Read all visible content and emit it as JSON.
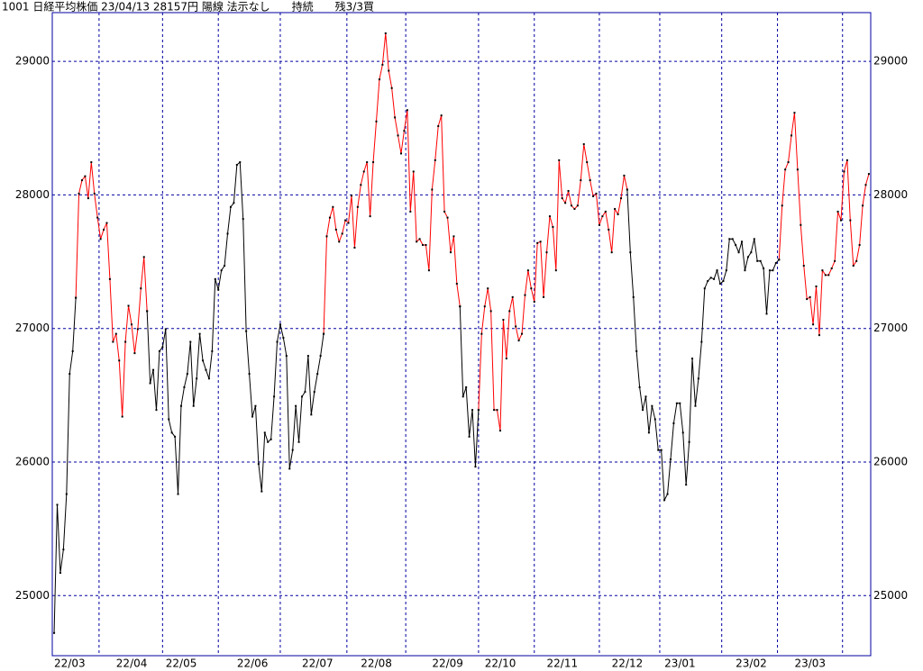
{
  "chart_data": {
    "type": "line",
    "title": "1001 日経平均株価 23/04/13 28157円 陽線 法示なし　　持続　　残3/3買",
    "categories": [
      "22/03",
      null,
      null,
      null,
      null,
      null,
      null,
      null,
      null,
      null,
      null,
      null,
      null,
      null,
      null,
      null,
      null,
      null,
      null,
      null,
      "22/04",
      null,
      null,
      null,
      null,
      null,
      null,
      null,
      null,
      null,
      null,
      null,
      null,
      null,
      null,
      null,
      "22/05",
      null,
      null,
      null,
      null,
      null,
      null,
      null,
      null,
      null,
      null,
      null,
      null,
      null,
      null,
      null,
      null,
      null,
      null,
      null,
      null,
      null,
      null,
      "22/06",
      null,
      null,
      null,
      null,
      null,
      null,
      null,
      null,
      null,
      null,
      null,
      null,
      null,
      null,
      null,
      null,
      null,
      null,
      null,
      null,
      "22/07",
      null,
      null,
      null,
      null,
      null,
      null,
      null,
      null,
      null,
      null,
      null,
      null,
      null,
      null,
      null,
      null,
      null,
      null,
      "22/08",
      null,
      null,
      null,
      null,
      null,
      null,
      null,
      null,
      null,
      null,
      null,
      null,
      null,
      null,
      null,
      null,
      null,
      null,
      null,
      null,
      null,
      null,
      "22/09",
      null,
      null,
      null,
      null,
      null,
      null,
      null,
      null,
      null,
      null,
      null,
      null,
      null,
      null,
      null,
      null,
      "22/10",
      null,
      null,
      null,
      null,
      null,
      null,
      null,
      null,
      null,
      null,
      null,
      null,
      null,
      null,
      null,
      null,
      null,
      null,
      null,
      "22/11",
      null,
      null,
      null,
      null,
      null,
      null,
      null,
      null,
      null,
      null,
      null,
      null,
      null,
      null,
      null,
      null,
      null,
      null,
      null,
      null,
      "22/12",
      null,
      null,
      null,
      null,
      null,
      null,
      null,
      null,
      null,
      null,
      null,
      null,
      null,
      null,
      null,
      null,
      "23/01",
      null,
      null,
      null,
      null,
      null,
      null,
      null,
      null,
      null,
      null,
      null,
      null,
      null,
      null,
      null,
      null,
      null,
      null,
      null,
      null,
      null,
      null,
      "23/02",
      null,
      null,
      null,
      null,
      null,
      null,
      null,
      null,
      null,
      null,
      null,
      null,
      null,
      null,
      null,
      null,
      null,
      null,
      "23/03",
      null,
      null,
      null,
      null,
      null,
      null,
      null,
      null,
      null,
      null,
      null,
      null,
      null,
      null,
      null,
      null,
      null,
      null,
      null,
      null,
      null,
      null,
      null,
      null
    ],
    "series": [
      {
        "color": "#000000",
        "values": [
          24720,
          25680,
          25170,
          25345,
          25760,
          26660,
          26830,
          27230,
          null,
          null,
          null,
          null,
          null,
          null,
          null,
          null,
          null,
          null,
          null,
          null,
          null,
          null,
          null,
          null,
          null,
          null,
          null,
          null,
          null,
          null,
          27130,
          26590,
          26690,
          26390,
          26830,
          26860,
          26995,
          26320,
          26220,
          26190,
          25760,
          26420,
          26560,
          26660,
          26900,
          26420,
          26625,
          26960,
          26760,
          26690,
          26625,
          26830,
          27370,
          27290,
          27435,
          27470,
          27710,
          27910,
          27940,
          28225,
          28245,
          27820,
          26980,
          26660,
          26340,
          26420,
          25985,
          25780,
          26220,
          26150,
          26170,
          26490,
          26900,
          27030,
          26930,
          26795,
          25950,
          26090,
          26420,
          26150,
          26490,
          26525,
          26795,
          26355,
          26525,
          26660,
          26795,
          26960,
          null,
          null,
          null,
          null,
          null,
          null,
          null,
          null,
          null,
          null,
          null,
          null,
          null,
          null,
          null,
          null,
          null,
          null,
          null,
          null,
          null,
          null,
          null,
          null,
          null,
          null,
          null,
          null,
          null,
          null,
          null,
          null,
          null,
          null,
          null,
          null,
          null,
          null,
          null,
          null,
          null,
          null,
          null,
          27165,
          26490,
          26560,
          26190,
          26390,
          25965,
          26390,
          null,
          null,
          null,
          null,
          null,
          null,
          null,
          null,
          null,
          null,
          null,
          null,
          null,
          null,
          null,
          null,
          null,
          null,
          null,
          null,
          null,
          null,
          null,
          null,
          null,
          null,
          null,
          null,
          null,
          null,
          null,
          null,
          null,
          null,
          null,
          null,
          null,
          null,
          null,
          null,
          null,
          null,
          null,
          null,
          null,
          null,
          null,
          28040,
          27570,
          27235,
          26830,
          26560,
          26390,
          26490,
          26220,
          26420,
          26320,
          26090,
          26090,
          25715,
          25760,
          26020,
          26290,
          26440,
          26440,
          26220,
          25830,
          26150,
          26775,
          26420,
          26625,
          26900,
          27300,
          27355,
          27380,
          27370,
          27435,
          27335,
          27355,
          27435,
          27670,
          27670,
          27625,
          27570,
          27650,
          27435,
          27535,
          27570,
          27670,
          27505,
          27505,
          27450,
          27110,
          27435,
          27435,
          27490,
          27515,
          null,
          null,
          null,
          null,
          null,
          null,
          null,
          null,
          null,
          null,
          null,
          null,
          null,
          null,
          null,
          null,
          null,
          null,
          null,
          null,
          null,
          null,
          null,
          null,
          null,
          null,
          null,
          null,
          null
        ]
      },
      {
        "color": "#ff0000",
        "values": [
          null,
          null,
          null,
          null,
          null,
          null,
          null,
          27230,
          28010,
          28110,
          28140,
          27975,
          28245,
          28010,
          27830,
          27670,
          27740,
          27790,
          27370,
          26900,
          26960,
          26760,
          26340,
          26900,
          27170,
          27030,
          26815,
          26995,
          27300,
          27535,
          27130,
          null,
          null,
          null,
          null,
          null,
          null,
          null,
          null,
          null,
          null,
          null,
          null,
          null,
          null,
          null,
          null,
          null,
          null,
          null,
          null,
          null,
          null,
          null,
          null,
          null,
          null,
          null,
          null,
          null,
          null,
          null,
          null,
          null,
          null,
          null,
          null,
          null,
          null,
          null,
          null,
          null,
          null,
          null,
          null,
          null,
          null,
          null,
          null,
          null,
          null,
          null,
          null,
          null,
          null,
          null,
          null,
          26960,
          27690,
          27830,
          27910,
          27740,
          27650,
          27710,
          27810,
          27790,
          27995,
          27605,
          27910,
          28075,
          28175,
          28245,
          27840,
          28245,
          28550,
          28865,
          28975,
          29210,
          28930,
          28800,
          28580,
          28445,
          28310,
          28480,
          28635,
          27875,
          28175,
          27650,
          27670,
          27625,
          27625,
          27435,
          28040,
          28260,
          28515,
          28595,
          27875,
          27830,
          27570,
          27690,
          27335,
          27165,
          null,
          null,
          null,
          null,
          null,
          26390,
          26960,
          27165,
          27300,
          27130,
          26390,
          26390,
          26235,
          27065,
          26775,
          27130,
          27235,
          27015,
          26910,
          26960,
          27250,
          27435,
          27300,
          27200,
          27640,
          27650,
          27235,
          27570,
          27840,
          27760,
          27435,
          28260,
          27975,
          27940,
          28030,
          27920,
          27895,
          27920,
          28110,
          28380,
          28245,
          28110,
          27990,
          28010,
          27775,
          27840,
          27875,
          27740,
          27570,
          27895,
          27855,
          27975,
          28145,
          28040,
          null,
          null,
          null,
          null,
          null,
          null,
          null,
          null,
          null,
          null,
          null,
          null,
          null,
          null,
          null,
          null,
          null,
          null,
          null,
          null,
          null,
          null,
          null,
          null,
          null,
          null,
          null,
          null,
          null,
          null,
          null,
          null,
          null,
          null,
          null,
          null,
          null,
          null,
          null,
          null,
          null,
          null,
          null,
          null,
          null,
          null,
          null,
          null,
          27515,
          27920,
          28190,
          28245,
          28445,
          28615,
          28190,
          27775,
          27470,
          27220,
          27235,
          27030,
          27315,
          26950,
          27435,
          27400,
          27400,
          27450,
          27505,
          27875,
          27810,
          28175,
          28260,
          27810,
          27470,
          27505,
          27625,
          27920,
          28075,
          28157
        ]
      }
    ],
    "marker_color": "#000000",
    "xlim": [
      -0.6,
      263.6
    ],
    "xticks": [
      14.5,
      35,
      53,
      73,
      94.5,
      113.5,
      137,
      155,
      176,
      195.5,
      215.5,
      233.5,
      254.5
    ],
    "ylim": [
      24550,
      29365
    ],
    "yticks": [
      25000,
      26000,
      27000,
      28000,
      29000
    ],
    "grid": true,
    "frame_color": "#0000a0"
  }
}
